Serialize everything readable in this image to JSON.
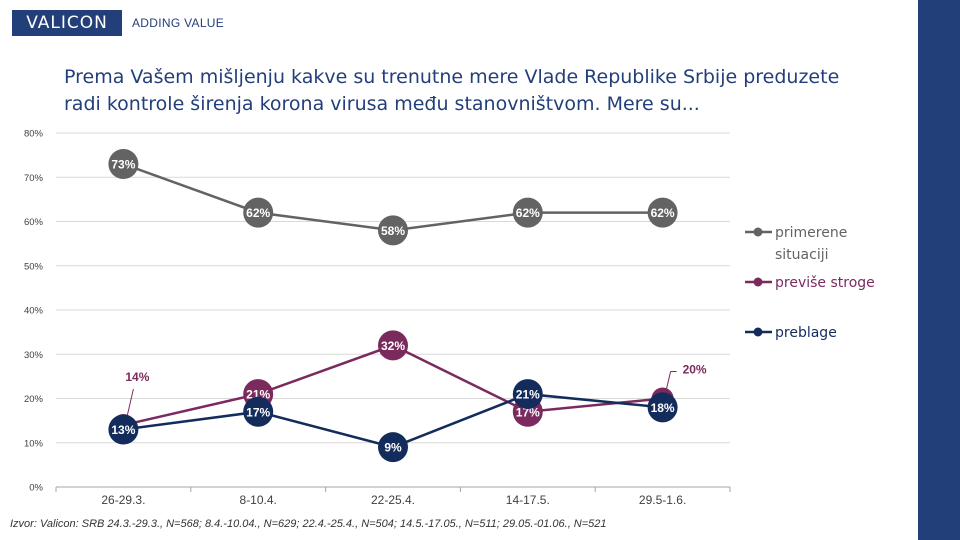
{
  "header": {
    "brand": "VALICON",
    "tagline": "ADDING VALUE"
  },
  "colors": {
    "brand_navy": "#233f7a",
    "series_gray": "#636363",
    "series_purple": "#7b2a5e",
    "series_navy": "#132c5c"
  },
  "footer": {
    "source": "Izvor: Valicon: SRB 24.3.-29.3., N=568; 8.4.-10.04., N=629; 22.4.-25.4., N=504; 14.5.-17.05., N=511; 29.05.-01.06., N=521"
  },
  "chart_data": {
    "type": "line",
    "title": "Prema Vašem mišljenju kakve su trenutne mere Vlade Republike Srbije preduzete radi kontrole širenja korona virusa među stanovništvom. Mere su...",
    "categories": [
      "26-29.3.",
      "8-10.4.",
      "22-25.4.",
      "14-17.5.",
      "29.5-1.6."
    ],
    "yticks": [
      "0%",
      "10%",
      "20%",
      "30%",
      "40%",
      "50%",
      "60%",
      "70%",
      "80%"
    ],
    "ylim": [
      0,
      80
    ],
    "grid": true,
    "legend_position": "right",
    "series": [
      {
        "name": "primerene situaciji",
        "legend_lines": [
          "primerene",
          "situaciji"
        ],
        "color": "#636363",
        "values": [
          73,
          62,
          58,
          62,
          62
        ],
        "labels": [
          "73%",
          "62%",
          "58%",
          "62%",
          "62%"
        ]
      },
      {
        "name": "previše stroge",
        "legend_lines": [
          "previše stroge"
        ],
        "color": "#7b2a5e",
        "values": [
          14,
          21,
          32,
          17,
          20
        ],
        "labels": [
          "14%",
          "21%",
          "32%",
          "17%",
          "20%"
        ]
      },
      {
        "name": "preblage",
        "legend_lines": [
          "preblage"
        ],
        "color": "#132c5c",
        "values": [
          13,
          17,
          9,
          21,
          18
        ],
        "labels": [
          "13%",
          "17%",
          "9%",
          "21%",
          "18%"
        ]
      }
    ]
  }
}
